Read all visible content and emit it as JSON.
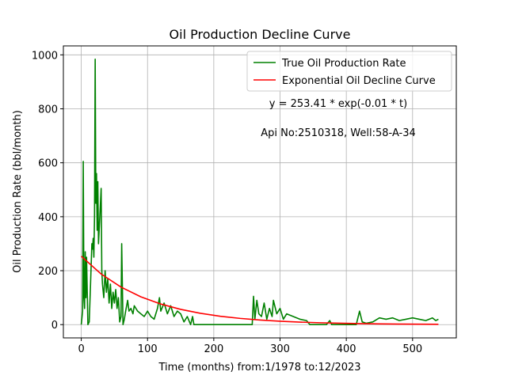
{
  "chart_data": {
    "type": "line",
    "title": "Oil Production Decline Curve",
    "xlabel": "Time (months) from:1/1978 to:12/2023",
    "ylabel": "Oil Production Rate (bbl/month)",
    "annotations": [
      "y = 253.41 * exp(-0.01 * t)",
      "Api No:2510318, Well:58-A-34"
    ],
    "xlim": [
      -27,
      566
    ],
    "ylim": [
      -49.2,
      1033.2
    ],
    "xticks": [
      0,
      100,
      200,
      300,
      400,
      500
    ],
    "yticks": [
      0,
      200,
      400,
      600,
      800,
      1000
    ],
    "grid": true,
    "legend": "upper right",
    "series": [
      {
        "name": "True Oil Production Rate",
        "color": "#008000",
        "x": [
          0,
          2,
          3,
          4,
          5,
          6,
          7,
          8,
          10,
          12,
          14,
          16,
          17,
          18,
          19,
          20,
          21,
          22,
          23,
          24,
          25,
          26,
          28,
          30,
          31,
          32,
          34,
          36,
          38,
          40,
          42,
          44,
          46,
          48,
          50,
          52,
          54,
          56,
          58,
          60,
          61,
          62,
          63,
          65,
          67,
          70,
          72,
          75,
          78,
          80,
          85,
          90,
          95,
          100,
          105,
          110,
          115,
          118,
          120,
          125,
          130,
          135,
          140,
          145,
          150,
          155,
          160,
          165,
          168,
          170,
          200,
          258,
          260,
          262,
          265,
          268,
          272,
          276,
          280,
          284,
          288,
          290,
          295,
          300,
          305,
          310,
          320,
          330,
          340,
          345,
          370,
          375,
          378,
          415,
          420,
          424,
          430,
          440,
          450,
          460,
          470,
          480,
          490,
          500,
          510,
          520,
          530,
          535,
          539
        ],
        "values": [
          0,
          50,
          605,
          100,
          60,
          270,
          100,
          250,
          0,
          10,
          150,
          300,
          280,
          320,
          250,
          400,
          984,
          450,
          560,
          350,
          530,
          300,
          400,
          505,
          200,
          150,
          100,
          200,
          120,
          170,
          80,
          150,
          60,
          120,
          80,
          130,
          60,
          100,
          10,
          30,
          300,
          150,
          0,
          20,
          50,
          90,
          50,
          60,
          40,
          70,
          50,
          40,
          30,
          50,
          30,
          20,
          60,
          100,
          50,
          80,
          40,
          70,
          30,
          50,
          40,
          10,
          30,
          0,
          30,
          0,
          0,
          0,
          105,
          20,
          90,
          40,
          30,
          80,
          20,
          60,
          30,
          90,
          40,
          60,
          20,
          40,
          30,
          20,
          15,
          0,
          0,
          15,
          0,
          0,
          50,
          10,
          5,
          10,
          25,
          20,
          25,
          15,
          20,
          25,
          20,
          15,
          25,
          15,
          20
        ]
      },
      {
        "name": "Exponential Oil Decline Curve",
        "color": "#ff0000",
        "x": [
          0,
          30,
          60,
          90,
          120,
          150,
          180,
          210,
          240,
          270,
          300,
          330,
          360,
          390,
          420,
          450,
          480,
          510,
          539
        ],
        "values": [
          253.41,
          187.73,
          139.07,
          103.03,
          76.33,
          56.54,
          41.89,
          31.03,
          22.99,
          17.03,
          12.62,
          9.35,
          6.92,
          5.13,
          3.8,
          2.81,
          2.08,
          1.54,
          1.16
        ]
      }
    ]
  }
}
